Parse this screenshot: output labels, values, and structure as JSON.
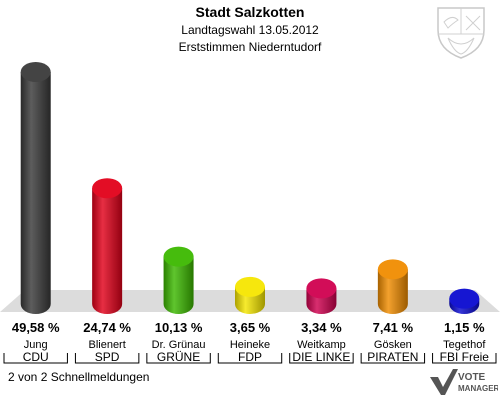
{
  "header": {
    "title": "Stadt Salzkotten",
    "subtitle": "Landtagswahl 13.05.2012",
    "subtitle2": "Erststimmen Niederntudorf"
  },
  "footer": {
    "status": "2 von 2 Schnellmeldungen"
  },
  "brand": {
    "line1": "VOTE",
    "line2": "MANAGER"
  },
  "chart_data": {
    "type": "bar",
    "categories": [
      "Jung",
      "Blienert",
      "Dr. Grünau",
      "Heineke",
      "Weitkamp",
      "Gösken",
      "Tegethof"
    ],
    "parties": [
      "CDU",
      "SPD",
      "GRÜNE",
      "FDP",
      "DIE LINKE",
      "PIRATEN",
      "FBI Freie"
    ],
    "values": [
      49.58,
      24.74,
      10.13,
      3.65,
      3.34,
      7.41,
      1.15
    ],
    "value_labels": [
      "49,58 %",
      "24,74 %",
      "10,13 %",
      "3,65 %",
      "3,34 %",
      "7,41 %",
      "1,15 %"
    ],
    "colors": [
      "#3a3a3a",
      "#e2001a",
      "#3cb800",
      "#f5e600",
      "#d0004f",
      "#f08c00",
      "#0a0ad0"
    ],
    "ylim": [
      0,
      50
    ]
  }
}
